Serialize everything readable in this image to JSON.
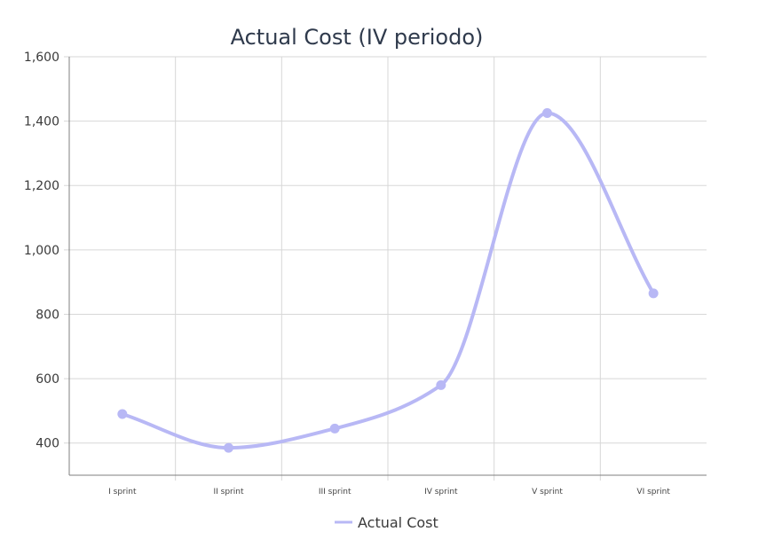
{
  "chart_data": {
    "type": "line",
    "title": "Actual Cost (IV periodo)",
    "xlabel": "",
    "ylabel": "",
    "categories": [
      "I sprint",
      "II sprint",
      "III sprint",
      "IV sprint",
      "V sprint",
      "VI sprint"
    ],
    "series": [
      {
        "name": "Actual Cost",
        "values": [
          490,
          385,
          445,
          580,
          1425,
          865
        ]
      }
    ],
    "ylim": [
      300,
      1600
    ],
    "yticks": [
      400,
      600,
      800,
      1000,
      1200,
      1400,
      1600
    ],
    "ytick_labels": [
      "400",
      "600",
      "800",
      "1,000",
      "1,200",
      "1,400",
      "1,600"
    ],
    "grid": true,
    "smooth": true,
    "legend_position": "bottom-center",
    "colors": {
      "series": "#b8b8f5",
      "grid": "#d7d7d7",
      "axis": "#7f7f7f",
      "title": "#2f3a4c"
    }
  }
}
